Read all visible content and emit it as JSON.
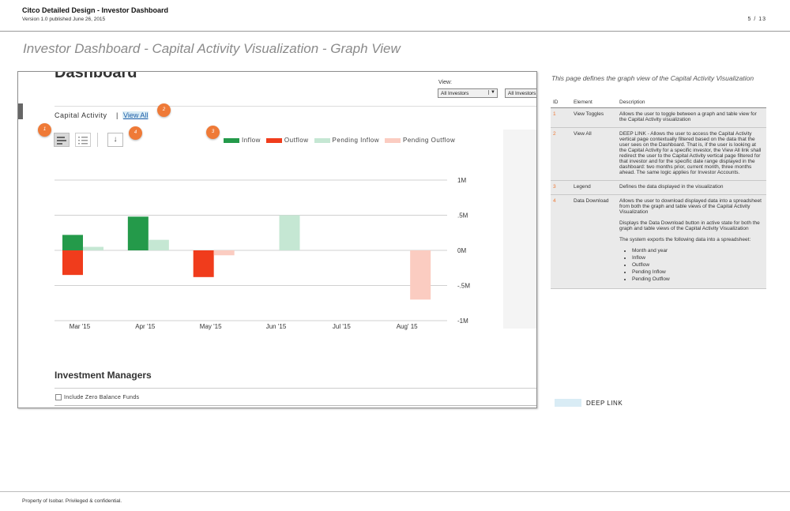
{
  "header": {
    "title": "Citco Detailed Design - Investor Dashboard",
    "version": "Version 1.0 published June 26, 2015",
    "page": "5 / 13"
  },
  "heading": "Investor Dashboard - Capital Activity Visualization - Graph View",
  "mockup": {
    "dashboard_title": "Dashboard",
    "view_label": "View:",
    "select1_value": "All Investors",
    "select1_arrow": "▼",
    "select2_value": "All Investors",
    "capital_activity": "Capital Activity",
    "separator": "|",
    "view_all": "View All",
    "badges": [
      "1",
      "2",
      "3",
      "4"
    ],
    "download_icon": "↓",
    "investment_managers": "Investment Managers",
    "include_zero": "Include Zero Balance Funds"
  },
  "chart_data": {
    "type": "bar",
    "categories": [
      "Mar '15",
      "Apr '15",
      "May '15",
      "Jun '15",
      "Jul '15",
      "Aug' 15"
    ],
    "series": [
      {
        "name": "Inflow",
        "color": "#249a4a",
        "values": [
          0.22,
          0.48,
          0,
          0,
          0,
          0
        ]
      },
      {
        "name": "Outflow",
        "color": "#f03c1c",
        "values": [
          -0.35,
          0,
          -0.38,
          0,
          0,
          0
        ]
      },
      {
        "name": "Pending Inflow",
        "color": "#c5e7d3",
        "values": [
          0.05,
          0.15,
          0,
          0.5,
          0,
          0
        ]
      },
      {
        "name": "Pending Outflow",
        "color": "#fbccc1",
        "values": [
          0,
          0,
          -0.07,
          0,
          0,
          -0.7
        ]
      }
    ],
    "y_ticks": [
      1,
      0.5,
      0,
      -0.5,
      -1
    ],
    "y_tick_labels": [
      "1M",
      ".5M",
      "0M",
      "-.5M",
      "-1M"
    ],
    "ylim": [
      -1,
      1
    ]
  },
  "description": {
    "intro": "This page defines the graph view of the Capital Activity Visualization",
    "col_id": "ID",
    "col_element": "Element",
    "col_description": "Description",
    "rows": [
      {
        "id": "1",
        "element": "View Toggles",
        "desc": "Allows the user to toggle between a graph and table view for the Capital Activity visualization"
      },
      {
        "id": "2",
        "element": "View All",
        "desc": "DEEP LINK - Allows the user to access the Capital Activity vertical page contextually filtered based on the data that the user sees on the Dashboard. That is, if the user is looking at the Capital Activity for a specific investor, the View All link shall redirect the user to the Capital Activity vertical page filtered for that investor and for the specific date range displayed in the dashboard: two months prior, current month, three months ahead. The same logic applies for Investor Accounts."
      },
      {
        "id": "3",
        "element": "Legend",
        "desc": "Defines the data displayed in the visualization"
      },
      {
        "id": "4",
        "element": "Data Download",
        "desc_p1": "Allows the user to download displayed data into a spreadsheet from both the graph and table views of the Capital Activity Visualization",
        "desc_p2": "Displays the Data Download button in active state for both the graph and table views of the Capital Activity Visualization",
        "desc_p3": "The system exports the following data into a spreadsheet:",
        "items": [
          "Month and year",
          "Inflow",
          "Outflow",
          "Pending Inflow",
          "Pending Outflow"
        ]
      }
    ]
  },
  "deep_link_label": "DEEP LINK",
  "footer": "Property of Isobar. Privileged & confidential."
}
